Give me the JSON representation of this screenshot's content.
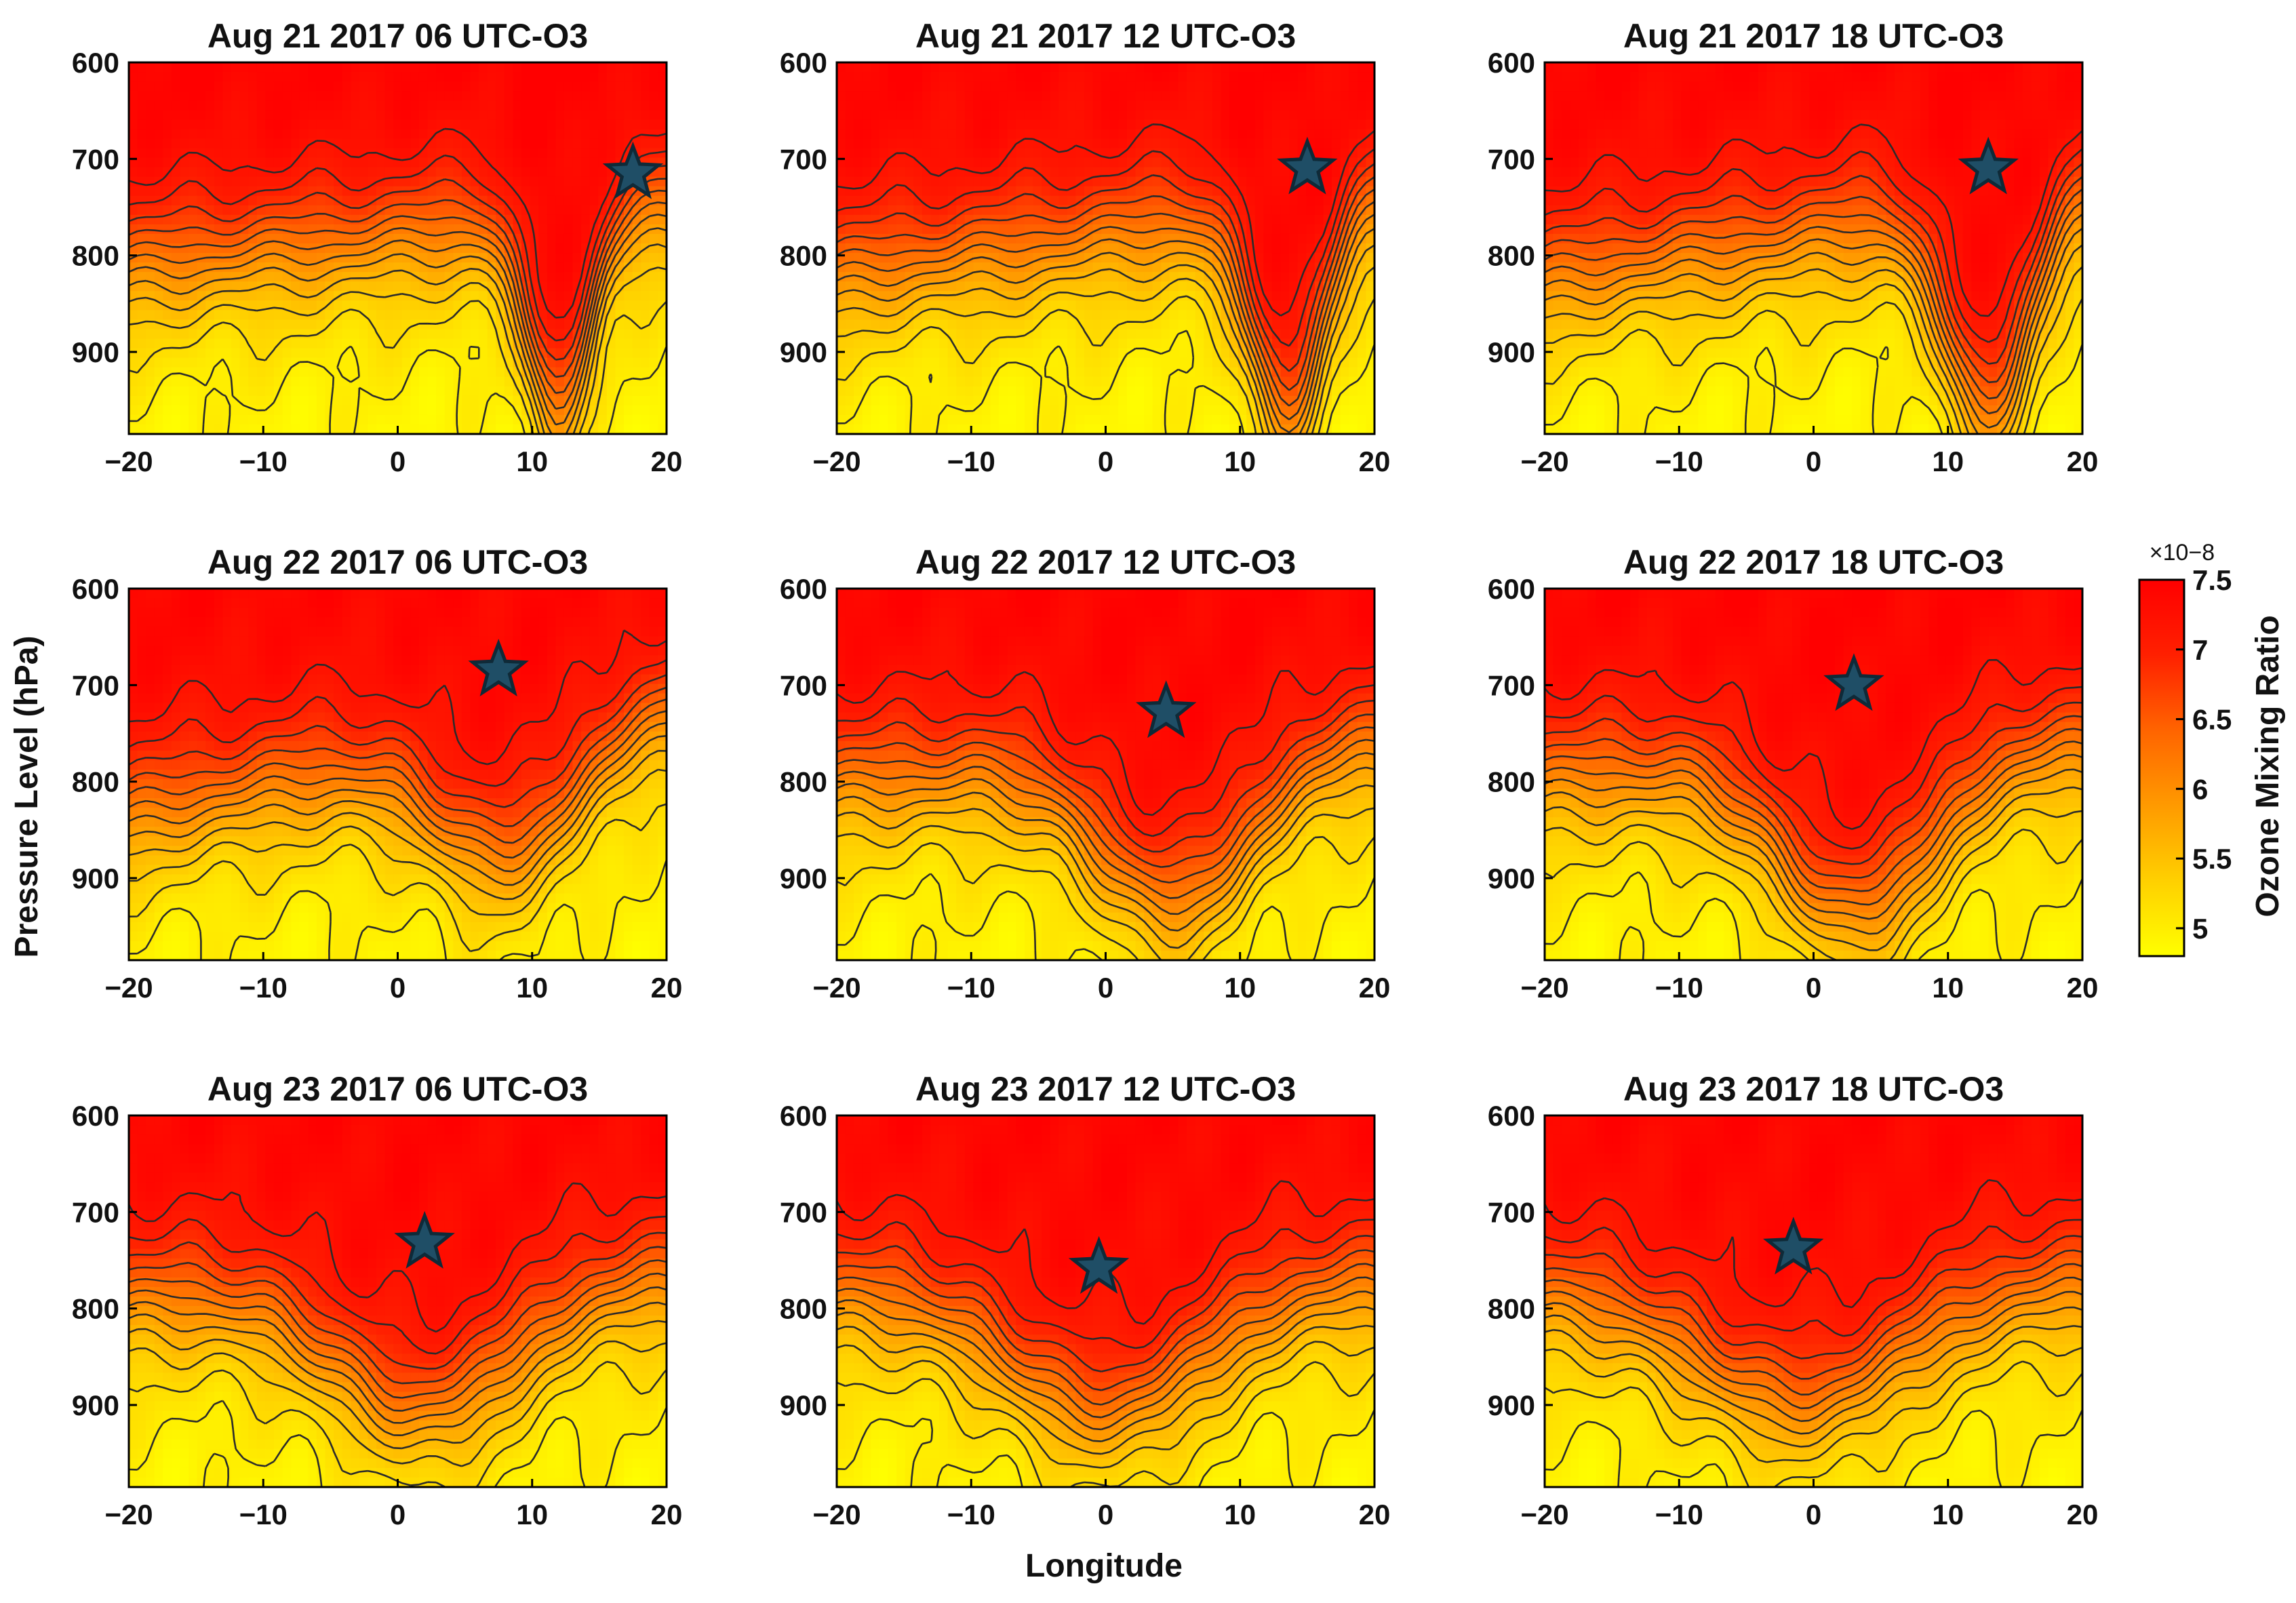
{
  "figure": {
    "xlabel": "Longitude",
    "ylabel": "Pressure Level (hPa)"
  },
  "colorbar": {
    "label": "Ozone Mixing Ratio",
    "exponent": "×10−8",
    "ticks": [
      5,
      5.5,
      6,
      6.5,
      7,
      7.5
    ],
    "tick_labels": [
      "5",
      "5.5",
      "6",
      "6.5",
      "7",
      "7.5"
    ],
    "range": [
      4.8,
      7.5
    ],
    "colormap": [
      "#ffff00",
      "#ffd000",
      "#ff9a00",
      "#ff6400",
      "#ff2000",
      "#ff0000"
    ],
    "unit_scale": 1e-08
  },
  "colors": {
    "contour_line": "#2b2b2b",
    "marker_fill": "#1f4e66",
    "marker_edge": "#0f2a38",
    "axis": "#000000"
  },
  "chart_data": [
    {
      "type": "contour",
      "title": "Aug 21 2017 06 UTC-O3",
      "x": {
        "label": "",
        "range": [
          -20,
          20
        ],
        "ticks": [
          -20,
          -10,
          0,
          10,
          20
        ],
        "tick_labels": [
          "−20",
          "−10",
          "0",
          "10",
          "20"
        ]
      },
      "y": {
        "label": "",
        "range": [
          600,
          985
        ],
        "reversed": true,
        "ticks": [
          600,
          700,
          800,
          900
        ],
        "tick_labels": [
          "600",
          "700",
          "800",
          "900"
        ]
      },
      "marker": {
        "lon": 17.5,
        "pressure": 715
      },
      "field": {
        "trough_lon": 12,
        "trough_depth": 210,
        "trough_width": 2.2,
        "tilt": 30,
        "upper_bias": 0.3
      },
      "contour_levels": [
        5.0,
        5.2,
        5.4,
        5.6,
        5.8,
        6.0,
        6.2,
        6.4,
        6.6,
        6.8,
        7.0,
        7.2
      ]
    },
    {
      "type": "contour",
      "title": "Aug 21 2017 12 UTC-O3",
      "x": {
        "label": "",
        "range": [
          -20,
          20
        ],
        "ticks": [
          -20,
          -10,
          0,
          10,
          20
        ],
        "tick_labels": [
          "−20",
          "−10",
          "0",
          "10",
          "20"
        ]
      },
      "y": {
        "label": "",
        "range": [
          600,
          985
        ],
        "reversed": true,
        "ticks": [
          600,
          700,
          800,
          900
        ],
        "tick_labels": [
          "600",
          "700",
          "800",
          "900"
        ]
      },
      "marker": {
        "lon": 15,
        "pressure": 710
      },
      "field": {
        "trough_lon": 13.5,
        "trough_depth": 220,
        "trough_width": 2.6,
        "tilt": 40,
        "upper_bias": 0.25
      },
      "contour_levels": [
        5.0,
        5.2,
        5.4,
        5.6,
        5.8,
        6.0,
        6.2,
        6.4,
        6.6,
        6.8,
        7.0,
        7.2
      ]
    },
    {
      "type": "contour",
      "title": "Aug 21 2017 18 UTC-O3",
      "x": {
        "label": "",
        "range": [
          -20,
          20
        ],
        "ticks": [
          -20,
          -10,
          0,
          10,
          20
        ],
        "tick_labels": [
          "−20",
          "−10",
          "0",
          "10",
          "20"
        ]
      },
      "y": {
        "label": "",
        "range": [
          600,
          985
        ],
        "reversed": true,
        "ticks": [
          600,
          700,
          800,
          900
        ],
        "tick_labels": [
          "600",
          "700",
          "800",
          "900"
        ]
      },
      "marker": {
        "lon": 13,
        "pressure": 710
      },
      "field": {
        "trough_lon": 13,
        "trough_depth": 220,
        "trough_width": 3.0,
        "tilt": 45,
        "upper_bias": 0.25
      },
      "contour_levels": [
        5.0,
        5.2,
        5.4,
        5.6,
        5.8,
        6.0,
        6.2,
        6.4,
        6.6,
        6.8,
        7.0,
        7.2
      ]
    },
    {
      "type": "contour",
      "title": "Aug 22 2017 06 UTC-O3",
      "x": {
        "label": "",
        "range": [
          -20,
          20
        ],
        "ticks": [
          -20,
          -10,
          0,
          10,
          20
        ],
        "tick_labels": [
          "−20",
          "−10",
          "0",
          "10",
          "20"
        ]
      },
      "y": {
        "label": "",
        "range": [
          600,
          985
        ],
        "reversed": true,
        "ticks": [
          600,
          700,
          800,
          900
        ],
        "tick_labels": [
          "600",
          "700",
          "800",
          "900"
        ]
      },
      "marker": {
        "lon": 7.5,
        "pressure": 685
      },
      "field": {
        "trough_lon": 8,
        "trough_depth": 120,
        "trough_width": 5.0,
        "tilt": 55,
        "upper_bias": 0.2
      },
      "contour_levels": [
        5.0,
        5.2,
        5.4,
        5.6,
        5.8,
        6.0,
        6.2,
        6.4,
        6.6,
        6.8,
        7.0,
        7.2
      ]
    },
    {
      "type": "contour",
      "title": "Aug 22 2017 12 UTC-O3",
      "x": {
        "label": "",
        "range": [
          -20,
          20
        ],
        "ticks": [
          -20,
          -10,
          0,
          10,
          20
        ],
        "tick_labels": [
          "−20",
          "−10",
          "0",
          "10",
          "20"
        ]
      },
      "y": {
        "label": "",
        "range": [
          600,
          985
        ],
        "reversed": true,
        "ticks": [
          600,
          700,
          800,
          900
        ],
        "tick_labels": [
          "600",
          "700",
          "800",
          "900"
        ]
      },
      "marker": {
        "lon": 4.5,
        "pressure": 728
      },
      "field": {
        "trough_lon": 5,
        "trough_depth": 150,
        "trough_width": 5.5,
        "tilt": 20,
        "upper_bias": 0.25
      },
      "contour_levels": [
        5.0,
        5.2,
        5.4,
        5.6,
        5.8,
        6.0,
        6.2,
        6.4,
        6.6,
        6.8,
        7.0,
        7.2
      ]
    },
    {
      "type": "contour",
      "title": "Aug 22 2017 18 UTC-O3",
      "x": {
        "label": "",
        "range": [
          -20,
          20
        ],
        "ticks": [
          -20,
          -10,
          0,
          10,
          20
        ],
        "tick_labels": [
          "−20",
          "−10",
          "0",
          "10",
          "20"
        ]
      },
      "y": {
        "label": "",
        "range": [
          600,
          985
        ],
        "reversed": true,
        "ticks": [
          600,
          700,
          800,
          900
        ],
        "tick_labels": [
          "600",
          "700",
          "800",
          "900"
        ]
      },
      "marker": {
        "lon": 3,
        "pressure": 700
      },
      "field": {
        "trough_lon": 3,
        "trough_depth": 160,
        "trough_width": 5.5,
        "tilt": 15,
        "upper_bias": 0.25
      },
      "contour_levels": [
        5.0,
        5.2,
        5.4,
        5.6,
        5.8,
        6.0,
        6.2,
        6.4,
        6.6,
        6.8,
        7.0,
        7.2
      ]
    },
    {
      "type": "contour",
      "title": "Aug 23 2017 06 UTC-O3",
      "x": {
        "label": "",
        "range": [
          -20,
          20
        ],
        "ticks": [
          -20,
          -10,
          0,
          10,
          20
        ],
        "tick_labels": [
          "−20",
          "−10",
          "0",
          "10",
          "20"
        ]
      },
      "y": {
        "label": "",
        "range": [
          600,
          985
        ],
        "reversed": true,
        "ticks": [
          600,
          700,
          800,
          900
        ],
        "tick_labels": [
          "600",
          "700",
          "800",
          "900"
        ]
      },
      "marker": {
        "lon": 2,
        "pressure": 732
      },
      "field": {
        "trough_lon": 2,
        "trough_depth": 130,
        "trough_width": 6.5,
        "tilt": 10,
        "upper_bias": 0.2
      },
      "contour_levels": [
        5.0,
        5.2,
        5.4,
        5.6,
        5.8,
        6.0,
        6.2,
        6.4,
        6.6,
        6.8,
        7.0,
        7.2
      ]
    },
    {
      "type": "contour",
      "title": "Aug 23 2017 12 UTC-O3",
      "x": {
        "label": "",
        "range": [
          -20,
          20
        ],
        "ticks": [
          -20,
          -10,
          0,
          10,
          20
        ],
        "tick_labels": [
          "−20",
          "−10",
          "0",
          "10",
          "20"
        ]
      },
      "y": {
        "label": "",
        "range": [
          600,
          985
        ],
        "reversed": true,
        "ticks": [
          600,
          700,
          800,
          900
        ],
        "tick_labels": [
          "600",
          "700",
          "800",
          "900"
        ]
      },
      "marker": {
        "lon": -0.5,
        "pressure": 758
      },
      "field": {
        "trough_lon": 0,
        "trough_depth": 130,
        "trough_width": 7.0,
        "tilt": 5,
        "upper_bias": 0.2
      },
      "contour_levels": [
        5.0,
        5.2,
        5.4,
        5.6,
        5.8,
        6.0,
        6.2,
        6.4,
        6.6,
        6.8,
        7.0,
        7.2
      ]
    },
    {
      "type": "contour",
      "title": "Aug 23 2017 18 UTC-O3",
      "x": {
        "label": "",
        "range": [
          -20,
          20
        ],
        "ticks": [
          -20,
          -10,
          0,
          10,
          20
        ],
        "tick_labels": [
          "−20",
          "−10",
          "0",
          "10",
          "20"
        ]
      },
      "y": {
        "label": "",
        "range": [
          600,
          985
        ],
        "reversed": true,
        "ticks": [
          600,
          700,
          800,
          900
        ],
        "tick_labels": [
          "600",
          "700",
          "800",
          "900"
        ]
      },
      "marker": {
        "lon": -1.5,
        "pressure": 738
      },
      "field": {
        "trough_lon": -1,
        "trough_depth": 120,
        "trough_width": 7.5,
        "tilt": 5,
        "upper_bias": 0.2
      },
      "contour_levels": [
        5.0,
        5.2,
        5.4,
        5.6,
        5.8,
        6.0,
        6.2,
        6.4,
        6.6,
        6.8,
        7.0,
        7.2
      ]
    }
  ]
}
